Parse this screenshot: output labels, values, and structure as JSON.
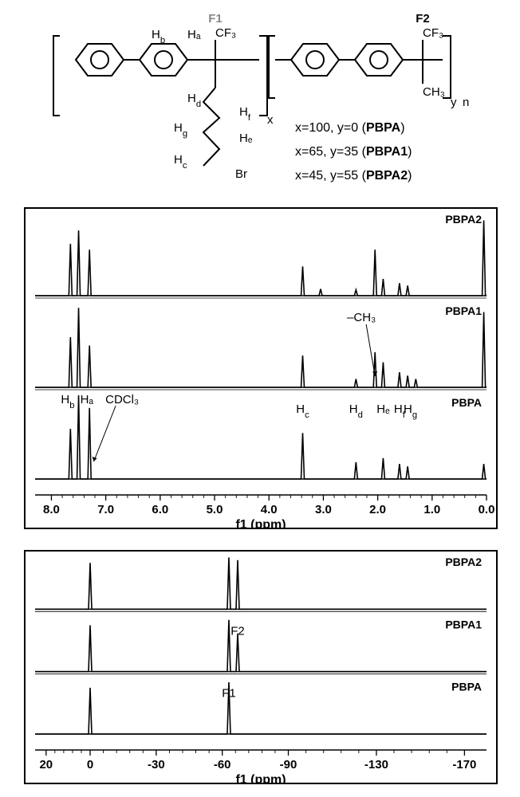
{
  "structure": {
    "frag1_label": "F1",
    "frag2_label": "F2",
    "cf3_1": "CF₃",
    "cf3_2": "CF₃",
    "ch3": "CH₃",
    "br": "Br",
    "Ha": "Hₐ",
    "Hb": "H_b",
    "Hc": "H_c",
    "Hd": "H_d",
    "He": "Hₑ",
    "Hf": "H_f",
    "Hg": "H_g",
    "x_sub": "x",
    "y_sub": "y",
    "n_sub": "n",
    "conditions": [
      {
        "x": "x=100, y=0",
        "name": "PBPA"
      },
      {
        "x": "x=65, y=35",
        "name": "PBPA1"
      },
      {
        "x": "x=45, y=55",
        "name": "PBPA2"
      }
    ]
  },
  "hnmr": {
    "xmin": 0.0,
    "xmax": 8.3,
    "ticks": [
      8.0,
      7.0,
      6.0,
      5.0,
      4.0,
      3.0,
      2.0,
      1.0,
      0.0
    ],
    "xlabel": "f1 (ppm)",
    "plot_color": "#000000",
    "grid": false,
    "traces": [
      {
        "name": "PBPA2",
        "peaks": [
          {
            "ppm": 7.65,
            "h": 0.62
          },
          {
            "ppm": 7.5,
            "h": 0.78
          },
          {
            "ppm": 7.3,
            "h": 0.55
          },
          {
            "ppm": 3.38,
            "h": 0.35
          },
          {
            "ppm": 3.05,
            "h": 0.08
          },
          {
            "ppm": 2.4,
            "h": 0.07
          },
          {
            "ppm": 2.05,
            "h": 0.55
          },
          {
            "ppm": 1.9,
            "h": 0.2
          },
          {
            "ppm": 1.6,
            "h": 0.15
          },
          {
            "ppm": 1.45,
            "h": 0.12
          },
          {
            "ppm": 0.05,
            "h": 0.9
          }
        ],
        "labels": []
      },
      {
        "name": "PBPA1",
        "peaks": [
          {
            "ppm": 7.65,
            "h": 0.6
          },
          {
            "ppm": 7.5,
            "h": 0.95
          },
          {
            "ppm": 7.3,
            "h": 0.5
          },
          {
            "ppm": 3.38,
            "h": 0.38
          },
          {
            "ppm": 2.4,
            "h": 0.1
          },
          {
            "ppm": 2.05,
            "h": 0.42
          },
          {
            "ppm": 1.9,
            "h": 0.3
          },
          {
            "ppm": 1.6,
            "h": 0.18
          },
          {
            "ppm": 1.45,
            "h": 0.14
          },
          {
            "ppm": 1.3,
            "h": 0.1
          },
          {
            "ppm": 0.05,
            "h": 0.9
          }
        ],
        "labels": [
          {
            "text": "–CH₃",
            "ppm": 2.3,
            "arrow_to": 2.05
          }
        ]
      },
      {
        "name": "PBPA",
        "peaks": [
          {
            "ppm": 7.65,
            "h": 0.6
          },
          {
            "ppm": 7.5,
            "h": 1.0
          },
          {
            "ppm": 7.3,
            "h": 0.85
          },
          {
            "ppm": 3.38,
            "h": 0.55
          },
          {
            "ppm": 2.4,
            "h": 0.2
          },
          {
            "ppm": 1.9,
            "h": 0.25
          },
          {
            "ppm": 1.6,
            "h": 0.18
          },
          {
            "ppm": 1.45,
            "h": 0.15
          },
          {
            "ppm": 0.05,
            "h": 0.18
          }
        ],
        "labels": [
          {
            "text": "H_c",
            "ppm": 3.38
          },
          {
            "text": "H_d",
            "ppm": 2.4
          },
          {
            "text": "Hₑ",
            "ppm": 1.9
          },
          {
            "text": "H_f",
            "ppm": 1.6
          },
          {
            "text": "H_g",
            "ppm": 1.4
          }
        ],
        "side_labels": [
          {
            "text": "H_b",
            "ppm": 7.7
          },
          {
            "text": "Hₐ",
            "ppm": 7.35
          },
          {
            "text": "CDCl₃",
            "ppm": 6.7,
            "arrow_to": 7.25
          }
        ]
      }
    ]
  },
  "fnmr": {
    "xmin": -180,
    "xmax": 25,
    "ticks": [
      20,
      0,
      -30,
      -60,
      -90,
      -130,
      -170
    ],
    "xlabel": "f1 (ppm)",
    "plot_color": "#000000",
    "traces": [
      {
        "name": "PBPA2",
        "peaks": [
          {
            "ppm": 0,
            "h": 0.85
          },
          {
            "ppm": -63,
            "h": 0.95
          },
          {
            "ppm": -67,
            "h": 0.9
          }
        ],
        "labels": []
      },
      {
        "name": "PBPA1",
        "peaks": [
          {
            "ppm": 0,
            "h": 0.85
          },
          {
            "ppm": -63,
            "h": 0.95
          },
          {
            "ppm": -67,
            "h": 0.7
          }
        ],
        "labels": [
          {
            "text": "F2",
            "ppm": -67
          }
        ]
      },
      {
        "name": "PBPA",
        "peaks": [
          {
            "ppm": 0,
            "h": 0.85
          },
          {
            "ppm": -63,
            "h": 0.95
          }
        ],
        "labels": [
          {
            "text": "F1",
            "ppm": -63
          }
        ]
      }
    ]
  }
}
